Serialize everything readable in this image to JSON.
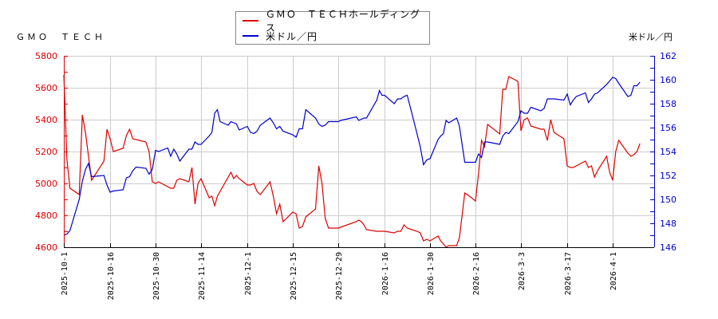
{
  "left_title": "ＧＭＯ　ＴＥＣＨ",
  "right_title": "米ドル／円",
  "legend": [
    {
      "label": "ＧＭＯ　ＴＥＣＨホールディングス",
      "color": "#dd0000"
    },
    {
      "label": "米ドル／円",
      "color": "#0000cc"
    }
  ],
  "colors": {
    "stock": "#dd0000",
    "fx": "#0000cc",
    "grid": "#cccccc",
    "axis": "#000000"
  },
  "chart_data": {
    "type": "line",
    "title": "",
    "xlabel": "",
    "ylabel_left": "",
    "ylabel_right": "米ドル／円",
    "x_ticks": [
      "2025-10-1",
      "2025-10-16",
      "2025-10-30",
      "2025-11-14",
      "2025-12-1",
      "2025-12-15",
      "2025-12-29",
      "2026-1-16",
      "2026-1-30",
      "2026-2-16",
      "2026-3-3",
      "2026-3-17",
      "2026-4-1"
    ],
    "y_left": {
      "min": 4600,
      "max": 5800,
      "ticks": [
        4600,
        4800,
        5000,
        5200,
        5400,
        5600,
        5800
      ]
    },
    "y_right": {
      "min": 146,
      "max": 162,
      "ticks": [
        146,
        148,
        150,
        152,
        154,
        156,
        158,
        160,
        162
      ]
    },
    "grid": true,
    "legend_position": "top-center",
    "series": [
      {
        "name": "ＧＭＯ　ＴＥＣＨホールディングス",
        "axis": "left",
        "points": [
          [
            "2025-10-1",
            5680
          ],
          [
            "2025-10-2",
            5150
          ],
          [
            "2025-10-3",
            4970
          ],
          [
            "2025-10-6",
            4930
          ],
          [
            "2025-10-7",
            5430
          ],
          [
            "2025-10-8",
            5320
          ],
          [
            "2025-10-10",
            5020
          ],
          [
            "2025-10-14",
            5140
          ],
          [
            "2025-10-15",
            5340
          ],
          [
            "2025-10-16",
            5280
          ],
          [
            "2025-10-17",
            5200
          ],
          [
            "2025-10-20",
            5220
          ],
          [
            "2025-10-21",
            5300
          ],
          [
            "2025-10-22",
            5340
          ],
          [
            "2025-10-23",
            5280
          ],
          [
            "2025-10-27",
            5260
          ],
          [
            "2025-10-28",
            5200
          ],
          [
            "2025-10-29",
            5010
          ],
          [
            "2025-10-30",
            5000
          ],
          [
            "2025-10-31",
            5010
          ],
          [
            "2025-11-4",
            4970
          ],
          [
            "2025-11-5",
            4970
          ],
          [
            "2025-11-6",
            5020
          ],
          [
            "2025-11-7",
            5030
          ],
          [
            "2025-11-10",
            5010
          ],
          [
            "2025-11-11",
            5100
          ],
          [
            "2025-11-12",
            4870
          ],
          [
            "2025-11-13",
            5000
          ],
          [
            "2025-11-14",
            5030
          ],
          [
            "2025-11-17",
            4910
          ],
          [
            "2025-11-18",
            4920
          ],
          [
            "2025-11-19",
            4860
          ],
          [
            "2025-11-20",
            4920
          ],
          [
            "2025-11-21",
            4950
          ],
          [
            "2025-11-25",
            5070
          ],
          [
            "2025-11-26",
            5030
          ],
          [
            "2025-11-27",
            5050
          ],
          [
            "2025-11-28",
            5030
          ],
          [
            "2025-12-1",
            4990
          ],
          [
            "2025-12-2",
            4990
          ],
          [
            "2025-12-3",
            5000
          ],
          [
            "2025-12-4",
            4950
          ],
          [
            "2025-12-5",
            4930
          ],
          [
            "2025-12-8",
            5010
          ],
          [
            "2025-12-9",
            4920
          ],
          [
            "2025-12-10",
            4810
          ],
          [
            "2025-12-11",
            4870
          ],
          [
            "2025-12-12",
            4760
          ],
          [
            "2025-12-15",
            4820
          ],
          [
            "2025-12-16",
            4810
          ],
          [
            "2025-12-17",
            4720
          ],
          [
            "2025-12-18",
            4730
          ],
          [
            "2025-12-19",
            4790
          ],
          [
            "2025-12-22",
            4840
          ],
          [
            "2025-12-23",
            5110
          ],
          [
            "2025-12-24",
            5000
          ],
          [
            "2025-12-25",
            4780
          ],
          [
            "2025-12-26",
            4720
          ],
          [
            "2025-12-29",
            4720
          ],
          [
            "2026-1-5",
            4760
          ],
          [
            "2026-1-6",
            4770
          ],
          [
            "2026-1-7",
            4760
          ],
          [
            "2026-1-8",
            4740
          ],
          [
            "2026-1-9",
            4710
          ],
          [
            "2026-1-13",
            4700
          ],
          [
            "2026-1-14",
            4700
          ],
          [
            "2026-1-15",
            4700
          ],
          [
            "2026-1-16",
            4700
          ],
          [
            "2026-1-19",
            4690
          ],
          [
            "2026-1-20",
            4700
          ],
          [
            "2026-1-21",
            4700
          ],
          [
            "2026-1-22",
            4740
          ],
          [
            "2026-1-23",
            4720
          ],
          [
            "2026-1-26",
            4700
          ],
          [
            "2026-1-27",
            4690
          ],
          [
            "2026-1-28",
            4640
          ],
          [
            "2026-1-29",
            4650
          ],
          [
            "2026-1-30",
            4640
          ],
          [
            "2026-2-2",
            4670
          ],
          [
            "2026-2-3",
            4640
          ],
          [
            "2026-2-4",
            4620
          ],
          [
            "2026-2-5",
            4600
          ],
          [
            "2026-2-6",
            4610
          ],
          [
            "2026-2-9",
            4610
          ],
          [
            "2026-2-10",
            4660
          ],
          [
            "2026-2-12",
            4940
          ],
          [
            "2026-2-13",
            4930
          ],
          [
            "2026-2-16",
            4890
          ],
          [
            "2026-2-17",
            5060
          ],
          [
            "2026-2-18",
            5270
          ],
          [
            "2026-2-19",
            5230
          ],
          [
            "2026-2-20",
            5370
          ],
          [
            "2026-2-24",
            5310
          ],
          [
            "2026-2-25",
            5590
          ],
          [
            "2026-2-26",
            5590
          ],
          [
            "2026-2-27",
            5670
          ],
          [
            "2026-3-2",
            5640
          ],
          [
            "2026-3-3",
            5330
          ],
          [
            "2026-3-4",
            5400
          ],
          [
            "2026-3-5",
            5410
          ],
          [
            "2026-3-6",
            5360
          ],
          [
            "2026-3-9",
            5340
          ],
          [
            "2026-3-10",
            5340
          ],
          [
            "2026-3-11",
            5270
          ],
          [
            "2026-3-12",
            5400
          ],
          [
            "2026-3-13",
            5320
          ],
          [
            "2026-3-16",
            5280
          ],
          [
            "2026-3-17",
            5110
          ],
          [
            "2026-3-18",
            5100
          ],
          [
            "2026-3-19",
            5100
          ],
          [
            "2026-3-23",
            5140
          ],
          [
            "2026-3-24",
            5100
          ],
          [
            "2026-3-25",
            5110
          ],
          [
            "2026-3-26",
            5040
          ],
          [
            "2026-3-27",
            5080
          ],
          [
            "2026-3-30",
            5170
          ],
          [
            "2026-3-31",
            5070
          ],
          [
            "2026-4-1",
            5020
          ],
          [
            "2026-4-2",
            5200
          ],
          [
            "2026-4-3",
            5270
          ],
          [
            "2026-4-6",
            5190
          ],
          [
            "2026-4-7",
            5170
          ],
          [
            "2026-4-8",
            5180
          ],
          [
            "2026-4-9",
            5200
          ],
          [
            "2026-4-10",
            5250
          ]
        ]
      },
      {
        "name": "米ドル／円",
        "axis": "right",
        "points": [
          [
            "2025-10-1",
            147.0
          ],
          [
            "2025-10-2",
            147.1
          ],
          [
            "2025-10-3",
            147.4
          ],
          [
            "2025-10-6",
            150.0
          ],
          [
            "2025-10-7",
            151.5
          ],
          [
            "2025-10-8",
            152.5
          ],
          [
            "2025-10-9",
            153.0
          ],
          [
            "2025-10-10",
            151.9
          ],
          [
            "2025-10-14",
            152.0
          ],
          [
            "2025-10-15",
            151.2
          ],
          [
            "2025-10-16",
            150.6
          ],
          [
            "2025-10-17",
            150.7
          ],
          [
            "2025-10-20",
            150.8
          ],
          [
            "2025-10-21",
            151.8
          ],
          [
            "2025-10-22",
            151.9
          ],
          [
            "2025-10-23",
            152.4
          ],
          [
            "2025-10-24",
            152.7
          ],
          [
            "2025-10-27",
            152.6
          ],
          [
            "2025-10-28",
            152.1
          ],
          [
            "2025-10-29",
            152.5
          ],
          [
            "2025-10-30",
            154.1
          ],
          [
            "2025-10-31",
            154.0
          ],
          [
            "2025-11-3",
            154.3
          ],
          [
            "2025-11-4",
            153.6
          ],
          [
            "2025-11-5",
            154.2
          ],
          [
            "2025-11-6",
            153.8
          ],
          [
            "2025-11-7",
            153.2
          ],
          [
            "2025-11-10",
            154.2
          ],
          [
            "2025-11-11",
            154.2
          ],
          [
            "2025-11-12",
            154.8
          ],
          [
            "2025-11-13",
            154.6
          ],
          [
            "2025-11-14",
            154.6
          ],
          [
            "2025-11-17",
            155.3
          ],
          [
            "2025-11-18",
            155.6
          ],
          [
            "2025-11-19",
            157.2
          ],
          [
            "2025-11-20",
            157.5
          ],
          [
            "2025-11-21",
            156.5
          ],
          [
            "2025-11-24",
            156.2
          ],
          [
            "2025-11-25",
            156.5
          ],
          [
            "2025-11-26",
            156.4
          ],
          [
            "2025-11-27",
            156.3
          ],
          [
            "2025-11-28",
            155.8
          ],
          [
            "2025-12-1",
            156.1
          ],
          [
            "2025-12-2",
            155.6
          ],
          [
            "2025-12-3",
            155.5
          ],
          [
            "2025-12-4",
            155.7
          ],
          [
            "2025-12-5",
            156.2
          ],
          [
            "2025-12-8",
            156.8
          ],
          [
            "2025-12-9",
            156.4
          ],
          [
            "2025-12-10",
            155.9
          ],
          [
            "2025-12-11",
            156.1
          ],
          [
            "2025-12-12",
            155.7
          ],
          [
            "2025-12-15",
            155.4
          ],
          [
            "2025-12-16",
            155.2
          ],
          [
            "2025-12-17",
            155.9
          ],
          [
            "2025-12-18",
            155.9
          ],
          [
            "2025-12-19",
            157.5
          ],
          [
            "2025-12-22",
            156.8
          ],
          [
            "2025-12-23",
            156.3
          ],
          [
            "2025-12-24",
            156.1
          ],
          [
            "2025-12-25",
            156.2
          ],
          [
            "2025-12-26",
            156.5
          ],
          [
            "2025-12-29",
            156.5
          ],
          [
            "2025-12-30",
            156.6
          ],
          [
            "2026-1-5",
            156.9
          ],
          [
            "2026-1-6",
            156.6
          ],
          [
            "2026-1-7",
            156.7
          ],
          [
            "2026-1-8",
            156.8
          ],
          [
            "2026-1-9",
            156.8
          ],
          [
            "2026-1-13",
            158.3
          ],
          [
            "2026-1-14",
            159.1
          ],
          [
            "2026-1-15",
            158.7
          ],
          [
            "2026-1-16",
            158.7
          ],
          [
            "2026-1-19",
            158.0
          ],
          [
            "2026-1-20",
            158.4
          ],
          [
            "2026-1-21",
            158.4
          ],
          [
            "2026-1-22",
            158.6
          ],
          [
            "2026-1-23",
            158.7
          ],
          [
            "2026-1-26",
            155.5
          ],
          [
            "2026-1-27",
            154.4
          ],
          [
            "2026-1-28",
            152.9
          ],
          [
            "2026-1-29",
            153.3
          ],
          [
            "2026-1-30",
            153.4
          ],
          [
            "2026-2-2",
            155.0
          ],
          [
            "2026-2-3",
            155.3
          ],
          [
            "2026-2-4",
            155.5
          ],
          [
            "2026-2-5",
            156.6
          ],
          [
            "2026-2-6",
            156.4
          ],
          [
            "2026-2-9",
            156.8
          ],
          [
            "2026-2-10",
            156.1
          ],
          [
            "2026-2-12",
            153.1
          ],
          [
            "2026-2-13",
            153.1
          ],
          [
            "2026-2-16",
            153.1
          ],
          [
            "2026-2-17",
            153.8
          ],
          [
            "2026-2-18",
            153.5
          ],
          [
            "2026-2-19",
            154.8
          ],
          [
            "2026-2-20",
            154.8
          ],
          [
            "2026-2-24",
            154.6
          ],
          [
            "2026-2-25",
            155.3
          ],
          [
            "2026-2-26",
            155.6
          ],
          [
            "2026-2-27",
            155.5
          ],
          [
            "2026-3-2",
            156.5
          ],
          [
            "2026-3-3",
            157.4
          ],
          [
            "2026-3-4",
            157.2
          ],
          [
            "2026-3-5",
            157.2
          ],
          [
            "2026-3-6",
            157.7
          ],
          [
            "2026-3-9",
            157.4
          ],
          [
            "2026-3-10",
            157.6
          ],
          [
            "2026-3-11",
            158.4
          ],
          [
            "2026-3-12",
            158.4
          ],
          [
            "2026-3-13",
            158.4
          ],
          [
            "2026-3-16",
            158.3
          ],
          [
            "2026-3-17",
            158.8
          ],
          [
            "2026-3-18",
            157.9
          ],
          [
            "2026-3-19",
            158.3
          ],
          [
            "2026-3-20",
            158.6
          ],
          [
            "2026-3-23",
            158.9
          ],
          [
            "2026-3-24",
            158.1
          ],
          [
            "2026-3-25",
            158.4
          ],
          [
            "2026-3-26",
            158.8
          ],
          [
            "2026-3-27",
            158.9
          ],
          [
            "2026-3-30",
            159.6
          ],
          [
            "2026-3-31",
            159.9
          ],
          [
            "2026-4-1",
            160.2
          ],
          [
            "2026-4-2",
            160.1
          ],
          [
            "2026-4-3",
            159.7
          ],
          [
            "2026-4-6",
            158.6
          ],
          [
            "2026-4-7",
            158.7
          ],
          [
            "2026-4-8",
            159.5
          ],
          [
            "2026-4-9",
            159.5
          ],
          [
            "2026-4-10",
            159.8
          ]
        ]
      }
    ]
  }
}
